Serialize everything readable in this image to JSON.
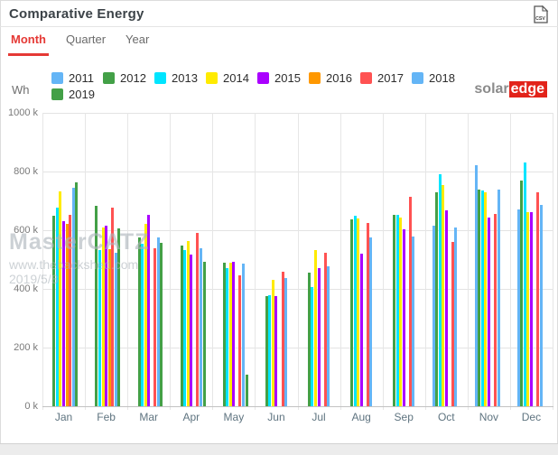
{
  "header": {
    "title": "Comparative Energy",
    "csv_button": "CSV"
  },
  "tabs": [
    {
      "label": "Month",
      "active": true
    },
    {
      "label": "Quarter",
      "active": false
    },
    {
      "label": "Year",
      "active": false
    }
  ],
  "unit_label": "Wh",
  "logo": {
    "part1": "solar",
    "part2": "edge",
    "accent": "#e2231a"
  },
  "watermark": {
    "line1": "MasterCATZ",
    "line2": "www.thebackshed.com",
    "line3": "2019/5/8"
  },
  "chart_data": {
    "type": "bar",
    "title": "Comparative Energy",
    "ylabel": "Wh",
    "values_unit": "thousand Wh (k)",
    "ylim": [
      0,
      1000
    ],
    "ytick_labels": [
      "1000 k",
      "800 k",
      "600 k",
      "400 k",
      "200 k",
      "0 k"
    ],
    "grid": true,
    "legend_position": "top",
    "categories": [
      "Jan",
      "Feb",
      "Mar",
      "Apr",
      "May",
      "Jun",
      "Jul",
      "Aug",
      "Sep",
      "Oct",
      "Nov",
      "Dec"
    ],
    "series": [
      {
        "name": "2011",
        "color": "#64B5F6",
        "values": [
          null,
          null,
          null,
          null,
          null,
          null,
          null,
          null,
          null,
          615,
          821,
          672
        ]
      },
      {
        "name": "2012",
        "color": "#43A047",
        "values": [
          650,
          683,
          575,
          549,
          489,
          374,
          456,
          636,
          651,
          728,
          738,
          769
        ]
      },
      {
        "name": "2013",
        "color": "#00E5FF",
        "values": [
          677,
          532,
          555,
          533,
          472,
          379,
          405,
          648,
          653,
          790,
          735,
          831
        ]
      },
      {
        "name": "2014",
        "color": "#FFEB00",
        "values": [
          733,
          610,
          621,
          564,
          490,
          431,
          533,
          640,
          643,
          754,
          728,
          662
        ]
      },
      {
        "name": "2015",
        "color": "#AA00FF",
        "values": [
          632,
          616,
          651,
          518,
          492,
          374,
          472,
          520,
          602,
          667,
          644,
          662
        ]
      },
      {
        "name": "2016",
        "color": "#FF9800",
        "values": [
          622,
          536,
          null,
          null,
          null,
          null,
          null,
          null,
          null,
          null,
          null,
          null
        ]
      },
      {
        "name": "2017",
        "color": "#FF5252",
        "values": [
          653,
          676,
          538,
          590,
          446,
          458,
          523,
          626,
          713,
          560,
          656,
          728
        ]
      },
      {
        "name": "2018",
        "color": "#64B5F6",
        "values": [
          745,
          523,
          575,
          540,
          487,
          436,
          477,
          574,
          579,
          610,
          740,
          687
        ]
      },
      {
        "name": "2019",
        "color": "#43A047",
        "values": [
          763,
          607,
          557,
          492,
          108,
          null,
          null,
          null,
          null,
          null,
          null,
          null
        ]
      }
    ]
  }
}
